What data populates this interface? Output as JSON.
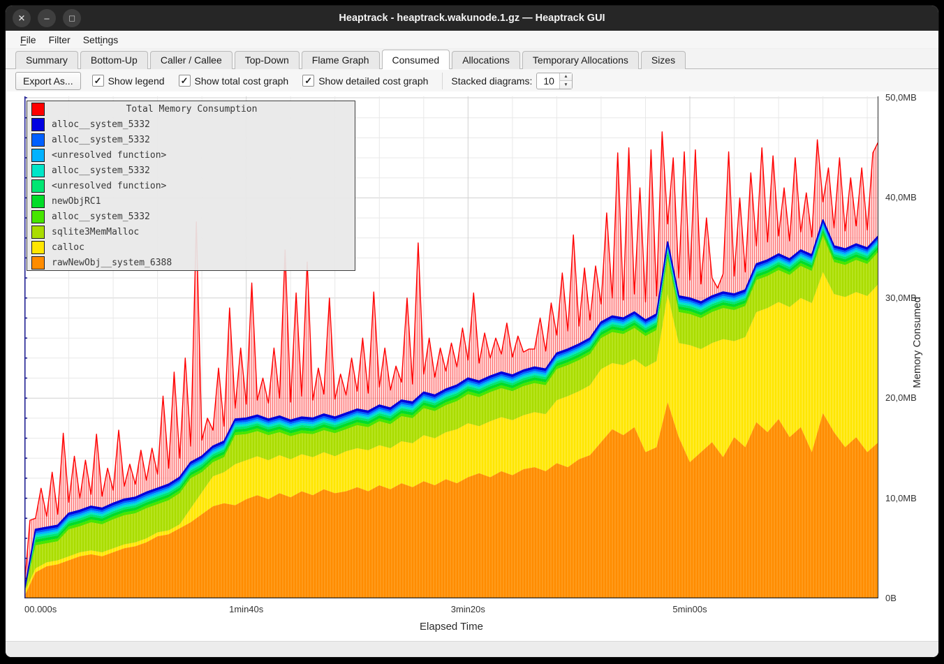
{
  "window": {
    "title": "Heaptrack - heaptrack.wakunode.1.gz — Heaptrack GUI",
    "controls": [
      {
        "name": "close",
        "glyph": "✕"
      },
      {
        "name": "minimize",
        "glyph": "–"
      },
      {
        "name": "maximize",
        "glyph": "□"
      }
    ]
  },
  "menu": {
    "items": [
      {
        "label": "File",
        "underline_index": 0
      },
      {
        "label": "Filter",
        "underline_index": -1
      },
      {
        "label": "Settings",
        "underline_index": 4
      }
    ]
  },
  "tabs": {
    "items": [
      "Summary",
      "Bottom-Up",
      "Caller / Callee",
      "Top-Down",
      "Flame Graph",
      "Consumed",
      "Allocations",
      "Temporary Allocations",
      "Sizes"
    ],
    "active": "Consumed"
  },
  "toolbar": {
    "export_label": "Export As...",
    "checkboxes": [
      {
        "label": "Show legend",
        "checked": true
      },
      {
        "label": "Show total cost graph",
        "checked": true
      },
      {
        "label": "Show detailed cost graph",
        "checked": true
      }
    ],
    "stacked_label": "Stacked diagrams:",
    "stacked_value": "10"
  },
  "chart_data": {
    "type": "area",
    "legend_title": "Total Memory Consumption",
    "legend_title_color": "#ff0000",
    "xlabel": "Elapsed Time",
    "ylabel": "Memory Consumed",
    "x_ticks": [
      {
        "s": 0,
        "label": "00.000s"
      },
      {
        "s": 100,
        "label": "1min40s"
      },
      {
        "s": 200,
        "label": "3min20s"
      },
      {
        "s": 300,
        "label": "5min00s"
      }
    ],
    "x_minor_step_s": 20,
    "t_max_s": 385,
    "y_ticks": [
      {
        "mb": 0,
        "label": "0B"
      },
      {
        "mb": 10,
        "label": "10,0MB"
      },
      {
        "mb": 20,
        "label": "20,0MB"
      },
      {
        "mb": 30,
        "label": "30,0MB"
      },
      {
        "mb": 40,
        "label": "40,0MB"
      },
      {
        "mb": 50,
        "label": "50,0MB"
      }
    ],
    "y_minor_step_mb": 2,
    "ylim": [
      0,
      50.14
    ],
    "legend": [
      {
        "label": "alloc__system_5332",
        "color": "#0000e1"
      },
      {
        "label": "alloc__system_5332",
        "color": "#0060ff"
      },
      {
        "label": "<unresolved function>",
        "color": "#00b2ff"
      },
      {
        "label": "alloc__system_5332",
        "color": "#00e6c8"
      },
      {
        "label": "<unresolved function>",
        "color": "#00e673"
      },
      {
        "label": "newObjRC1",
        "color": "#00dc28"
      },
      {
        "label": "alloc__system_5332",
        "color": "#46e600"
      },
      {
        "label": "sqlite3MemMalloc",
        "color": "#aadc00"
      },
      {
        "label": "calloc",
        "color": "#ffe600"
      },
      {
        "label": "rawNewObj__system_6388",
        "color": "#ff8c00"
      }
    ],
    "colors": {
      "total_line": "#ff0000",
      "total_fill_base": "rgba(255,150,150,0.40)",
      "total_hatch": "rgba(255,30,30,0.55)",
      "orange": "#ff8c00",
      "orange_hatch": "#ffa733",
      "yellow": "#ffe600",
      "yellow_hatch": "#fff059",
      "yellowgreen": "#aadc00",
      "yellowgreen_hatch": "#c2ec3c",
      "stack_line": "#0000d7",
      "grid_minor": "#e8e8e8",
      "grid_major": "#d0d0d0",
      "spine_left": "#14148c",
      "spine_dark": "#2a2a2a"
    },
    "thin_bands": {
      "colors": [
        "#46e600",
        "#00dc28",
        "#00e673",
        "#00e6c8",
        "#00b2ff",
        "#0060ff",
        "#0000e1"
      ],
      "cum_fracs": [
        0.18,
        0.36,
        0.5,
        0.63,
        0.76,
        0.88,
        1.0
      ]
    },
    "series_step_s": 5,
    "total_step_s": 2.5,
    "sqlite_gap_below_stack_top_mb": 1.6,
    "series": [
      {
        "name": "total_memory_consumption_mb",
        "values": [
          1.2,
          7.8,
          8.0,
          11.0,
          8.2,
          12.6,
          8.4,
          16.5,
          9.6,
          14.2,
          10.0,
          13.8,
          10.4,
          16.4,
          10.2,
          13.0,
          10.8,
          16.8,
          11.2,
          13.4,
          11.4,
          14.8,
          11.8,
          15.0,
          12.4,
          20.2,
          13.0,
          22.6,
          14.0,
          24.0,
          15.2,
          37.6,
          15.8,
          18.0,
          16.8,
          23.0,
          17.2,
          29.0,
          19.0,
          25.0,
          19.4,
          31.5,
          19.8,
          22.0,
          19.5,
          25.0,
          20.0,
          34.8,
          19.6,
          30.5,
          20.2,
          33.6,
          19.8,
          23.0,
          20.4,
          30.0,
          19.9,
          22.4,
          20.3,
          24.0,
          20.7,
          26.0,
          20.5,
          30.6,
          21.1,
          25.0,
          20.8,
          23.2,
          21.6,
          30.0,
          21.4,
          35.5,
          22.4,
          26.0,
          22.1,
          25.0,
          22.7,
          25.5,
          23.1,
          27.0,
          23.8,
          30.5,
          23.5,
          26.5,
          24.0,
          26.0,
          24.4,
          27.5,
          24.1,
          26.2,
          24.6,
          24.9,
          24.9,
          28.0,
          24.7,
          29.5,
          26.3,
          32.5,
          26.7,
          36.3,
          27.2,
          33.0,
          27.8,
          33.2,
          29.4,
          38.5,
          30.0,
          44.5,
          29.8,
          45.0,
          30.4,
          41.0,
          29.6,
          44.8,
          30.2,
          46.6,
          37.4,
          44.0,
          32.0,
          44.6,
          31.8,
          44.8,
          31.4,
          38.0,
          32.0,
          31.0,
          32.4,
          44.6,
          32.2,
          40.0,
          32.6,
          42.5,
          35.2,
          45.0,
          35.6,
          44.2,
          36.2,
          41.0,
          35.7,
          44.0,
          36.6,
          40.5,
          36.1,
          45.8,
          39.6,
          43.0,
          37.0,
          44.0,
          36.7,
          42.0,
          37.2,
          43.0,
          36.8,
          44.5,
          45.6
        ]
      },
      {
        "name": "stack_top_mb",
        "values": [
          0.8,
          6.9,
          7.1,
          7.3,
          8.5,
          8.8,
          9.2,
          9.0,
          9.5,
          9.9,
          10.1,
          10.6,
          11.0,
          11.4,
          12.1,
          13.6,
          14.2,
          15.2,
          15.7,
          17.9,
          18.0,
          18.3,
          17.9,
          18.2,
          17.8,
          18.1,
          18.0,
          18.4,
          18.1,
          18.5,
          18.9,
          18.7,
          19.3,
          19.0,
          19.8,
          19.6,
          20.6,
          20.3,
          20.9,
          21.3,
          22.0,
          21.7,
          22.2,
          22.6,
          22.3,
          22.8,
          23.1,
          22.9,
          24.5,
          24.9,
          25.4,
          26.0,
          27.6,
          28.2,
          28.0,
          28.6,
          27.8,
          28.4,
          35.6,
          30.2,
          30.0,
          29.6,
          30.2,
          30.6,
          30.4,
          30.8,
          33.4,
          33.8,
          34.4,
          33.9,
          34.8,
          34.3,
          37.8,
          35.2,
          34.9,
          35.4,
          35.0,
          36.2
        ]
      },
      {
        "name": "calloc_top_mb",
        "values": [
          0.6,
          3.0,
          3.6,
          3.8,
          4.2,
          4.6,
          4.8,
          4.6,
          5.0,
          5.4,
          5.6,
          6.0,
          6.6,
          6.8,
          7.4,
          9.0,
          10.6,
          12.2,
          12.6,
          13.4,
          13.8,
          14.2,
          13.8,
          14.3,
          13.9,
          14.4,
          14.1,
          14.6,
          14.2,
          14.7,
          15.0,
          14.8,
          15.3,
          15.0,
          15.7,
          15.5,
          16.3,
          16.0,
          16.6,
          16.9,
          17.5,
          17.2,
          17.7,
          18.1,
          17.8,
          18.3,
          18.6,
          18.4,
          19.8,
          20.2,
          20.7,
          21.3,
          22.9,
          23.5,
          23.3,
          23.9,
          23.1,
          23.7,
          30.4,
          25.5,
          25.3,
          24.9,
          25.5,
          25.9,
          25.7,
          26.1,
          28.6,
          29.0,
          29.6,
          29.1,
          30.0,
          29.5,
          32.6,
          30.4,
          30.1,
          30.6,
          30.2,
          31.4
        ]
      },
      {
        "name": "rawnewobj_top_mb",
        "values": [
          0.2,
          2.6,
          3.2,
          3.4,
          3.8,
          4.2,
          4.4,
          4.2,
          4.6,
          5.0,
          5.2,
          5.6,
          6.2,
          6.4,
          7.0,
          7.6,
          8.4,
          9.2,
          9.5,
          9.3,
          9.9,
          10.3,
          9.9,
          10.5,
          10.1,
          10.7,
          10.3,
          10.9,
          10.5,
          10.7,
          11.1,
          10.7,
          11.3,
          10.9,
          11.5,
          11.1,
          11.7,
          11.3,
          11.9,
          11.5,
          12.1,
          12.5,
          12.1,
          12.7,
          12.3,
          12.9,
          13.1,
          12.7,
          13.5,
          13.1,
          13.9,
          14.3,
          15.6,
          16.9,
          16.3,
          17.1,
          14.6,
          15.1,
          19.6,
          16.1,
          13.6,
          14.6,
          15.6,
          14.1,
          16.1,
          15.1,
          17.6,
          16.6,
          17.9,
          16.1,
          17.1,
          14.6,
          18.5,
          16.6,
          15.1,
          16.1,
          14.6,
          15.6
        ]
      }
    ]
  }
}
